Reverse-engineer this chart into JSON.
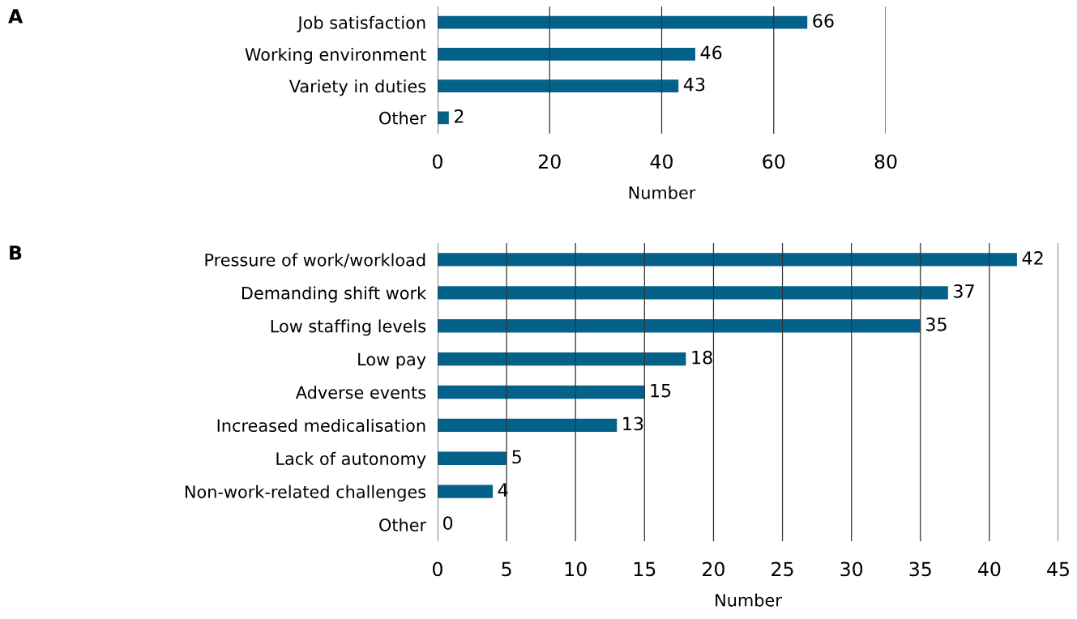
{
  "chart_data": [
    {
      "type": "bar",
      "orientation": "horizontal",
      "annotations": [
        "A"
      ],
      "xlabel": "Number",
      "categories": [
        "Job satisfaction",
        "Working environment",
        "Variety in duties",
        "Other"
      ],
      "values": [
        66,
        46,
        43,
        2
      ],
      "color": "#04628a",
      "xlim": [
        0,
        80
      ],
      "xticks": [
        0,
        20,
        40,
        60,
        80
      ],
      "grid": "x",
      "data_labels": true
    },
    {
      "type": "bar",
      "orientation": "horizontal",
      "annotations": [
        "B"
      ],
      "xlabel": "Number",
      "categories": [
        "Pressure of work/workload",
        "Demanding shift work",
        "Low staffing levels",
        "Low pay",
        "Adverse events",
        "Increased medicalisation",
        "Lack of autonomy",
        "Non-work-related challenges",
        "Other"
      ],
      "values": [
        42,
        37,
        35,
        18,
        15,
        13,
        5,
        4,
        0
      ],
      "color": "#04628a",
      "xlim": [
        0,
        45
      ],
      "xticks": [
        0,
        5,
        10,
        15,
        20,
        25,
        30,
        35,
        40,
        45
      ],
      "grid": "x",
      "data_labels": true
    }
  ]
}
